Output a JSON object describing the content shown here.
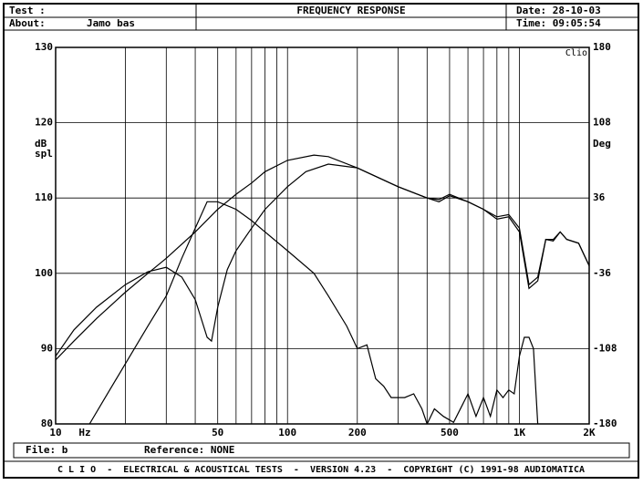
{
  "header": {
    "test_label": "Test :",
    "title": "FREQUENCY RESPONSE",
    "date": "Date: 28-10-03",
    "about_label": "About:",
    "about": "Jamo bas",
    "time": "Time: 09:05:54"
  },
  "chart_data": {
    "type": "line",
    "log_x": true,
    "grid": true,
    "xlim": [
      10,
      2000
    ],
    "xticks": [
      10,
      50,
      100,
      200,
      500,
      {
        "value": 1000,
        "label": "1K"
      },
      {
        "value": 2000,
        "label": "2K"
      }
    ],
    "x_minor_grid": [
      20,
      30,
      40,
      60,
      70,
      80,
      90,
      300,
      400,
      600,
      700,
      800,
      900
    ],
    "x_unit": "Hz",
    "y_label": [
      "dB",
      "spl"
    ],
    "y2_label": "Deg",
    "corner_label": "Clio",
    "ylim": [
      80,
      130
    ],
    "yticks": [
      80,
      90,
      100,
      110,
      120,
      130
    ],
    "y2lim": [
      -180,
      180
    ],
    "y2ticks": [
      -180,
      -108,
      -36,
      36,
      108,
      180
    ],
    "series": [
      {
        "color": "#000",
        "x": [
          10,
          12,
          15,
          20,
          25,
          30,
          40,
          50,
          60,
          70,
          80,
          100,
          130,
          150,
          200,
          300,
          400,
          450,
          500,
          600,
          700,
          800,
          900,
          1000,
          1100,
          1200,
          1300,
          1400,
          1500,
          1600,
          1800,
          2000
        ],
        "values": [
          88.5,
          91,
          94,
          97.5,
          100,
          102,
          105.5,
          108.5,
          110.5,
          112,
          113.5,
          115,
          115.7,
          115.5,
          114,
          111.5,
          110,
          109.8,
          110.5,
          109.5,
          108.5,
          107.5,
          107.8,
          106,
          98.5,
          99.5,
          104.5,
          104.3,
          105.5,
          104.5,
          104,
          101
        ]
      },
      {
        "color": "#000",
        "x": [
          10,
          12,
          15,
          20,
          25,
          30,
          35,
          40,
          45,
          47,
          50,
          55,
          60,
          70,
          80,
          100,
          120,
          150,
          200,
          300,
          400,
          450,
          500,
          600,
          700,
          800,
          900,
          1000,
          1100,
          1200,
          1300,
          1400,
          1500,
          1600,
          1800,
          2000
        ],
        "values": [
          89,
          92.5,
          95.5,
          98.5,
          100.2,
          100.8,
          99.5,
          96.5,
          91.5,
          91,
          95.5,
          100.5,
          103,
          106,
          108.5,
          111.5,
          113.5,
          114.5,
          114,
          111.5,
          110,
          109.5,
          110.3,
          109.5,
          108.5,
          107.2,
          107.5,
          105.5,
          98,
          99,
          104.5,
          104.5,
          105.5,
          104.5,
          104,
          101
        ]
      },
      {
        "color": "#000",
        "x": [
          14,
          16,
          20,
          25,
          30,
          35,
          40,
          45,
          50,
          60,
          70,
          80,
          100,
          130,
          150,
          180,
          200,
          220,
          240,
          260,
          280,
          320,
          350,
          380,
          400,
          430,
          470,
          520,
          600,
          650,
          700,
          750,
          800,
          850,
          900,
          950,
          1000,
          1050,
          1100,
          1150,
          1200
        ],
        "values": [
          80,
          83,
          88,
          93,
          97,
          102,
          106,
          109.5,
          109.5,
          108.5,
          107,
          105.5,
          103,
          100,
          97,
          93,
          90,
          90.5,
          86,
          85,
          83.5,
          83.5,
          84,
          82,
          80,
          82,
          81,
          80.2,
          84,
          81,
          83.5,
          81,
          84.5,
          83.5,
          84.5,
          84,
          89,
          91.5,
          91.5,
          90,
          80
        ]
      }
    ]
  },
  "footer": {
    "file": "File: b",
    "reference": "Reference: NONE",
    "credits": "C L I O  -  ELECTRICAL & ACOUSTICAL TESTS  -  VERSION 4.23  -  COPYRIGHT (C) 1991-98 AUDIOMATICA"
  }
}
